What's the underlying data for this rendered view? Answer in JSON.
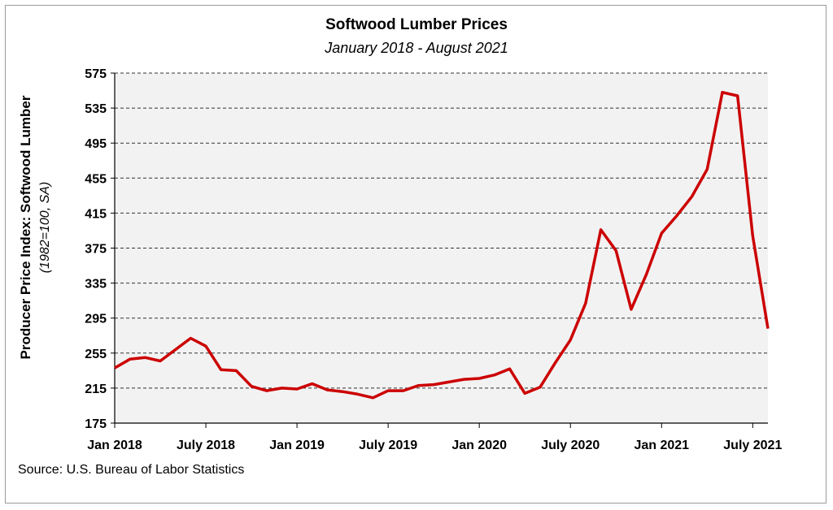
{
  "chart_data": {
    "type": "line",
    "title": "Softwood Lumber Prices",
    "subtitle": "January 2018 - August 2021",
    "ylabel": "Producer Price Index: Softwood Lumber",
    "ylabel_sub": "(1982=100, SA)",
    "ylim": [
      175,
      575
    ],
    "yticks": [
      175,
      215,
      255,
      295,
      335,
      375,
      415,
      455,
      495,
      535,
      575
    ],
    "xlabels": [
      {
        "index": 0,
        "label": "Jan 2018"
      },
      {
        "index": 6,
        "label": "July 2018"
      },
      {
        "index": 12,
        "label": "Jan 2019"
      },
      {
        "index": 18,
        "label": "July 2019"
      },
      {
        "index": 24,
        "label": "Jan 2020"
      },
      {
        "index": 30,
        "label": "July 2020"
      },
      {
        "index": 36,
        "label": "Jan 2021"
      },
      {
        "index": 42,
        "label": "July 2021"
      }
    ],
    "grid": "horizontal dashed",
    "series": [
      {
        "color": "#cc0000",
        "values": [
          238,
          248,
          250,
          246,
          259,
          272,
          263,
          236,
          235,
          217,
          212,
          215,
          214,
          220,
          213,
          211,
          208,
          204,
          212,
          212,
          218,
          219,
          222,
          225,
          226,
          230,
          237,
          209,
          216,
          244,
          270,
          312,
          396,
          372,
          305,
          345,
          392,
          412,
          434,
          465,
          553,
          549,
          389,
          283
        ]
      }
    ]
  },
  "source": "Source: U.S. Bureau of Labor Statistics"
}
